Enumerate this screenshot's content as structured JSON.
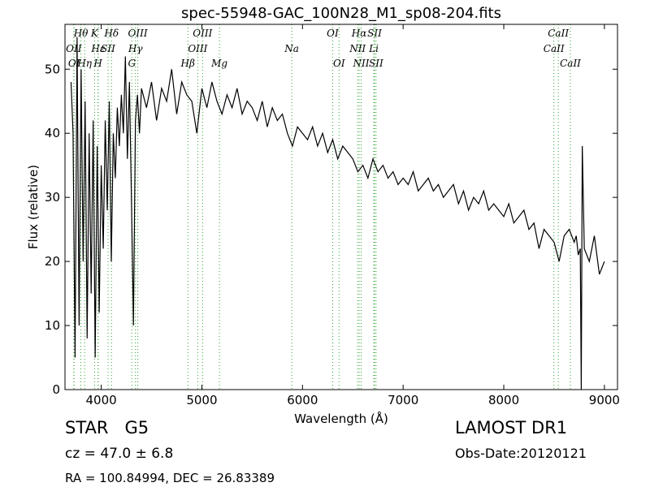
{
  "chart_data": {
    "type": "line",
    "title": "spec-55948-GAC_100N28_M1_sp08-204.fits",
    "xlabel": "Wavelength (Å)",
    "ylabel": "Flux (relative)",
    "color": "#000000",
    "line_color": "#2ca02c",
    "xlim": [
      3640,
      9130
    ],
    "ylim": [
      0,
      57
    ],
    "xticks": [
      4000,
      5000,
      6000,
      7000,
      8000,
      9000
    ],
    "yticks": [
      0,
      10,
      20,
      30,
      40,
      50
    ],
    "x": [
      3700,
      3720,
      3740,
      3760,
      3780,
      3800,
      3820,
      3840,
      3860,
      3880,
      3900,
      3920,
      3940,
      3960,
      3980,
      4000,
      4020,
      4040,
      4060,
      4080,
      4100,
      4120,
      4140,
      4160,
      4180,
      4200,
      4220,
      4240,
      4260,
      4280,
      4300,
      4320,
      4340,
      4360,
      4380,
      4400,
      4450,
      4500,
      4550,
      4600,
      4650,
      4700,
      4750,
      4800,
      4850,
      4900,
      4950,
      5000,
      5050,
      5100,
      5150,
      5200,
      5250,
      5300,
      5350,
      5400,
      5450,
      5500,
      5550,
      5600,
      5650,
      5700,
      5750,
      5800,
      5850,
      5900,
      5950,
      6000,
      6050,
      6100,
      6150,
      6200,
      6250,
      6300,
      6350,
      6400,
      6450,
      6500,
      6550,
      6600,
      6650,
      6700,
      6750,
      6800,
      6850,
      6900,
      6950,
      7000,
      7050,
      7100,
      7150,
      7200,
      7250,
      7300,
      7350,
      7400,
      7450,
      7500,
      7550,
      7600,
      7650,
      7700,
      7750,
      7800,
      7850,
      7900,
      7950,
      8000,
      8050,
      8100,
      8150,
      8200,
      8250,
      8300,
      8350,
      8400,
      8450,
      8500,
      8550,
      8600,
      8650,
      8700,
      8720,
      8740,
      8760,
      8770,
      8780,
      8800,
      8850,
      8900,
      8950,
      9000
    ],
    "values": [
      48,
      40,
      5,
      55,
      10,
      50,
      20,
      45,
      8,
      40,
      15,
      42,
      5,
      38,
      12,
      35,
      22,
      42,
      28,
      45,
      20,
      40,
      33,
      44,
      38,
      46,
      40,
      52,
      36,
      48,
      30,
      10,
      42,
      46,
      40,
      47,
      44,
      48,
      42,
      47,
      45,
      50,
      43,
      48,
      46,
      45,
      40,
      47,
      44,
      48,
      45,
      43,
      46,
      44,
      47,
      43,
      45,
      44,
      42,
      45,
      41,
      44,
      42,
      43,
      40,
      38,
      41,
      40,
      39,
      41,
      38,
      40,
      37,
      39,
      36,
      38,
      37,
      36,
      34,
      35,
      33,
      36,
      34,
      35,
      33,
      34,
      32,
      33,
      32,
      34,
      31,
      32,
      33,
      31,
      32,
      30,
      31,
      32,
      29,
      31,
      28,
      30,
      29,
      31,
      28,
      29,
      28,
      27,
      29,
      26,
      27,
      28,
      25,
      26,
      22,
      25,
      24,
      23,
      20,
      24,
      25,
      23,
      24,
      21,
      22,
      0,
      38,
      22,
      20,
      24,
      18,
      20
    ],
    "spectral_lines": [
      [
        {
          "label": "Hθ",
          "wavelength": 3798
        },
        {
          "label": "K",
          "wavelength": 3934
        },
        {
          "label": "Hδ",
          "wavelength": 4102
        },
        {
          "label": "OIII",
          "wavelength": 4363
        },
        {
          "label": "OIII",
          "wavelength": 5007
        },
        {
          "label": "OI",
          "wavelength": 6300
        },
        {
          "label": "Hα",
          "wavelength": 6563
        },
        {
          "label": "SII",
          "wavelength": 6716
        },
        {
          "label": "CaII",
          "wavelength": 8542
        }
      ],
      [
        {
          "label": "OII",
          "wavelength": 3727
        },
        {
          "label": "Hε",
          "wavelength": 3970
        },
        {
          "label": "SII",
          "wavelength": 4068
        },
        {
          "label": "Hγ",
          "wavelength": 4340
        },
        {
          "label": "OIII",
          "wavelength": 4959
        },
        {
          "label": "Na",
          "wavelength": 5893
        },
        {
          "label": "NII",
          "wavelength": 6548
        },
        {
          "label": "Li",
          "wavelength": 6708
        },
        {
          "label": "CaII",
          "wavelength": 8498
        }
      ],
      [
        {
          "label": "OI",
          "wavelength": 3730
        },
        {
          "label": "Hη",
          "wavelength": 3835
        },
        {
          "label": "H",
          "wavelength": 3968
        },
        {
          "label": "G",
          "wavelength": 4304
        },
        {
          "label": "Hβ",
          "wavelength": 4861
        },
        {
          "label": "Mg",
          "wavelength": 5175
        },
        {
          "label": "OI",
          "wavelength": 6363
        },
        {
          "label": "NII",
          "wavelength": 6583
        },
        {
          "label": "SII",
          "wavelength": 6731
        },
        {
          "label": "CaII",
          "wavelength": 8662
        }
      ]
    ],
    "info": {
      "object": "STAR   G5",
      "cz": "cz = 47.0 ± 6.8",
      "coords": "RA = 100.84994, DEC = 26.83389",
      "survey": "LAMOST DR1",
      "obs_date": "Obs-Date:20120121"
    }
  }
}
